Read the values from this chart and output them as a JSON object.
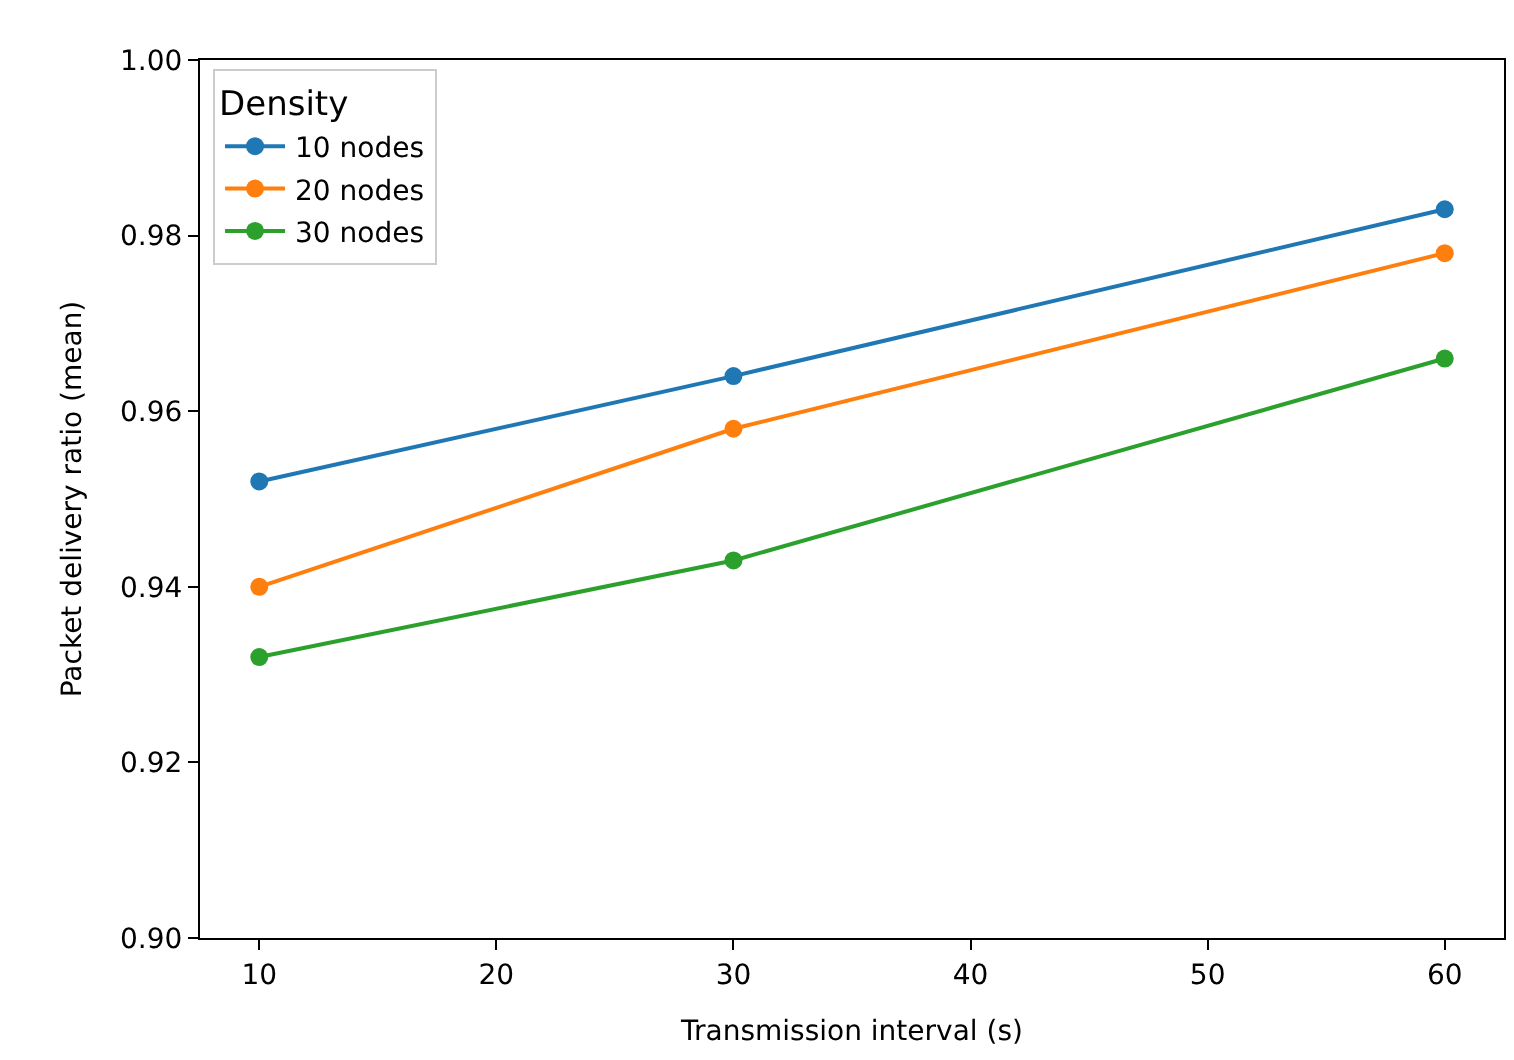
{
  "chart_data": {
    "type": "line",
    "xlabel": "Transmission interval (s)",
    "ylabel": "Packet delivery ratio (mean)",
    "legend_title": "Density",
    "legend": "top left",
    "marker": "circle",
    "line_style": "solid",
    "x": [
      10,
      30,
      60
    ],
    "series": [
      {
        "name": "10 nodes",
        "color": "#1f77b4",
        "values": [
          0.952,
          0.964,
          0.983
        ]
      },
      {
        "name": "20 nodes",
        "color": "#ff7f0e",
        "values": [
          0.94,
          0.958,
          0.978
        ]
      },
      {
        "name": "30 nodes",
        "color": "#2ca02c",
        "values": [
          0.932,
          0.943,
          0.966
        ]
      }
    ],
    "xlim": [
      7.5,
      62.5
    ],
    "xticks": [
      10,
      20,
      30,
      40,
      50,
      60
    ],
    "ylim": [
      0.9,
      1.0
    ],
    "yticks": [
      {
        "value": 0.9,
        "label": "0.90"
      },
      {
        "value": 0.92,
        "label": "0.92"
      },
      {
        "value": 0.94,
        "label": "0.94"
      },
      {
        "value": 0.96,
        "label": "0.96"
      },
      {
        "value": 0.98,
        "label": "0.98"
      },
      {
        "value": 1.0,
        "label": "1.00"
      }
    ]
  }
}
